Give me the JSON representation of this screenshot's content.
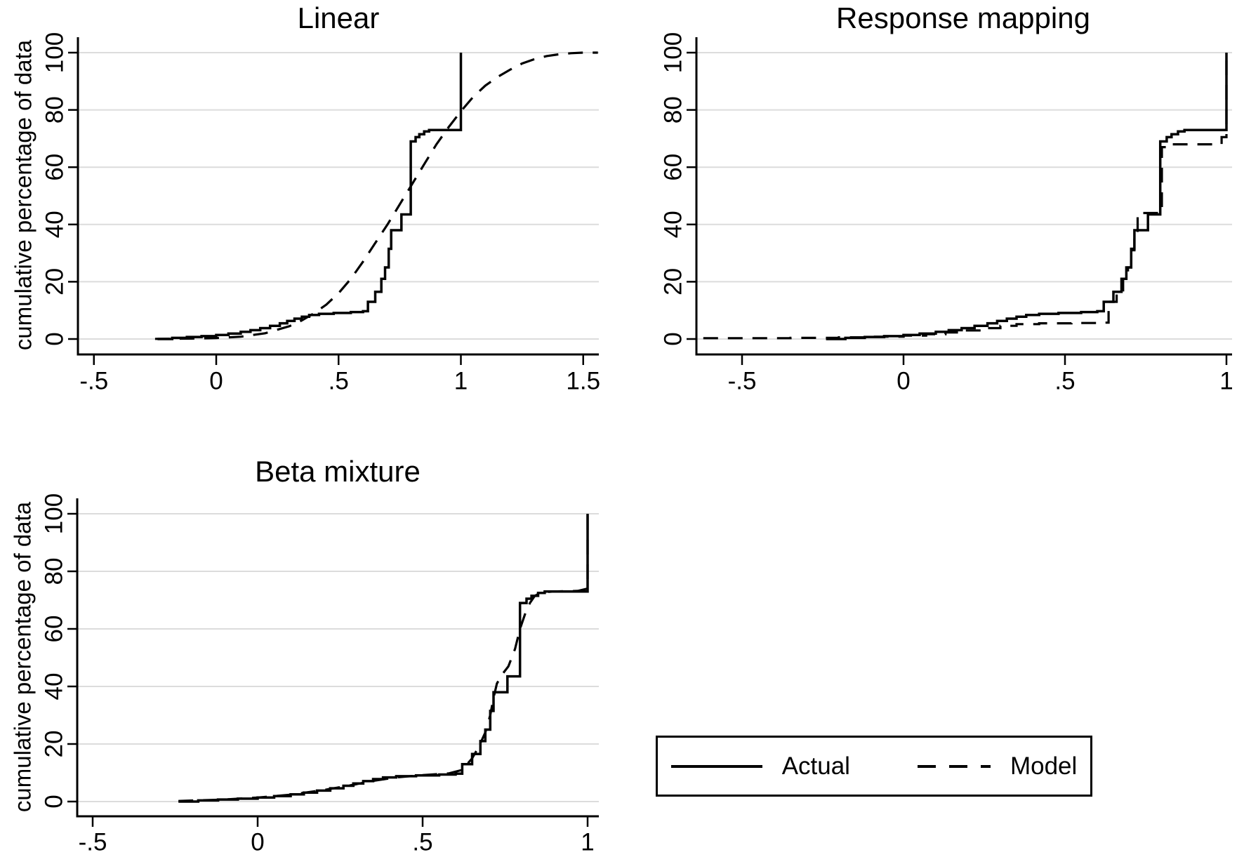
{
  "figure": {
    "background_color": "#ffffff",
    "line_color": "#000000",
    "gridline_color": "#dcdcdc",
    "shared_ylabel": "cumulative percentage of data",
    "legend": {
      "entries": [
        {
          "label": "Actual",
          "style": "solid"
        },
        {
          "label": "Model",
          "style": "dashed"
        }
      ],
      "position": "bottom-right-cell"
    }
  },
  "chart_data": [
    {
      "type": "line",
      "title": "Linear",
      "ylabel": "cumulative percentage of data",
      "xlabel": "",
      "x_range": [
        -0.565,
        1.565
      ],
      "y_range": [
        0,
        107
      ],
      "grid": "horizontal",
      "x_ticks": [
        {
          "v": -0.5,
          "label": "-.5"
        },
        {
          "v": 0,
          "label": "0"
        },
        {
          "v": 0.5,
          "label": ".5"
        },
        {
          "v": 1,
          "label": "1"
        },
        {
          "v": 1.5,
          "label": "1.5"
        }
      ],
      "y_ticks": [
        {
          "v": 0,
          "label": "0"
        },
        {
          "v": 20,
          "label": "20"
        },
        {
          "v": 40,
          "label": "40"
        },
        {
          "v": 60,
          "label": "60"
        },
        {
          "v": 80,
          "label": "80"
        },
        {
          "v": 100,
          "label": "100"
        }
      ],
      "series": [
        {
          "name": "Model",
          "style": "dashed",
          "interpolation": "linear",
          "points": [
            [
              -0.25,
              0.05
            ],
            [
              -0.1,
              0.15
            ],
            [
              0,
              0.35
            ],
            [
              0.1,
              0.8
            ],
            [
              0.2,
              2
            ],
            [
              0.3,
              4.5
            ],
            [
              0.35,
              6.5
            ],
            [
              0.4,
              9
            ],
            [
              0.45,
              12
            ],
            [
              0.5,
              16
            ],
            [
              0.55,
              21
            ],
            [
              0.6,
              27
            ],
            [
              0.65,
              33.5
            ],
            [
              0.7,
              40
            ],
            [
              0.75,
              47
            ],
            [
              0.8,
              54
            ],
            [
              0.85,
              61
            ],
            [
              0.9,
              68
            ],
            [
              0.95,
              74
            ],
            [
              1.0,
              79.5
            ],
            [
              1.05,
              84.5
            ],
            [
              1.1,
              88.5
            ],
            [
              1.15,
              91.5
            ],
            [
              1.2,
              94
            ],
            [
              1.25,
              96.2
            ],
            [
              1.3,
              97.7
            ],
            [
              1.35,
              98.8
            ],
            [
              1.4,
              99.4
            ],
            [
              1.45,
              99.8
            ],
            [
              1.5,
              100
            ],
            [
              1.56,
              100
            ]
          ]
        },
        {
          "name": "Actual",
          "style": "solid",
          "interpolation": "step",
          "points": [
            [
              -0.24,
              0
            ],
            [
              -0.18,
              0.4
            ],
            [
              -0.12,
              0.7
            ],
            [
              -0.06,
              1
            ],
            [
              0,
              1.4
            ],
            [
              0.05,
              1.9
            ],
            [
              0.1,
              2.5
            ],
            [
              0.14,
              3.1
            ],
            [
              0.18,
              3.8
            ],
            [
              0.22,
              4.6
            ],
            [
              0.26,
              5.5
            ],
            [
              0.29,
              6.3
            ],
            [
              0.32,
              7.1
            ],
            [
              0.35,
              7.8
            ],
            [
              0.38,
              8.4
            ],
            [
              0.42,
              8.8
            ],
            [
              0.48,
              9.1
            ],
            [
              0.55,
              9.4
            ],
            [
              0.6,
              9.7
            ],
            [
              0.62,
              13
            ],
            [
              0.65,
              16.5
            ],
            [
              0.675,
              21
            ],
            [
              0.69,
              25
            ],
            [
              0.705,
              31.5
            ],
            [
              0.715,
              38
            ],
            [
              0.757,
              43.5
            ],
            [
              0.795,
              69
            ],
            [
              0.815,
              70.5
            ],
            [
              0.83,
              71.5
            ],
            [
              0.85,
              72.5
            ],
            [
              0.87,
              73
            ],
            [
              1.0,
              73
            ],
            [
              1.0,
              100
            ]
          ]
        }
      ]
    },
    {
      "type": "line",
      "title": "Response mapping",
      "ylabel": "",
      "xlabel": "",
      "x_range": [
        -0.64,
        1.015
      ],
      "y_range": [
        0,
        107
      ],
      "grid": "horizontal",
      "x_ticks": [
        {
          "v": -0.5,
          "label": "-.5"
        },
        {
          "v": 0,
          "label": "0"
        },
        {
          "v": 0.5,
          "label": ".5"
        },
        {
          "v": 1,
          "label": "1"
        }
      ],
      "y_ticks": [
        {
          "v": 0,
          "label": "0"
        },
        {
          "v": 20,
          "label": "20"
        },
        {
          "v": 40,
          "label": "40"
        },
        {
          "v": 60,
          "label": "60"
        },
        {
          "v": 80,
          "label": "80"
        },
        {
          "v": 100,
          "label": "100"
        }
      ],
      "series": [
        {
          "name": "Model",
          "style": "dashed",
          "interpolation": "step",
          "points": [
            [
              -0.62,
              0.3
            ],
            [
              -0.35,
              0.4
            ],
            [
              -0.2,
              0.6
            ],
            [
              -0.1,
              0.8
            ],
            [
              0,
              1.2
            ],
            [
              0.07,
              1.7
            ],
            [
              0.13,
              2.3
            ],
            [
              0.19,
              3.0
            ],
            [
              0.25,
              3.8
            ],
            [
              0.3,
              4.6
            ],
            [
              0.35,
              5.2
            ],
            [
              0.42,
              5.5
            ],
            [
              0.52,
              5.6
            ],
            [
              0.6,
              5.7
            ],
            [
              0.635,
              13
            ],
            [
              0.66,
              17
            ],
            [
              0.68,
              21
            ],
            [
              0.695,
              25
            ],
            [
              0.705,
              31
            ],
            [
              0.715,
              36
            ],
            [
              0.725,
              44
            ],
            [
              0.79,
              44.5
            ],
            [
              0.8,
              67
            ],
            [
              0.82,
              68
            ],
            [
              0.96,
              68
            ],
            [
              0.985,
              70.5
            ],
            [
              1.0,
              71
            ],
            [
              1.0,
              100
            ]
          ]
        },
        {
          "name": "Actual",
          "style": "solid",
          "interpolation": "step",
          "points": [
            [
              -0.24,
              0
            ],
            [
              -0.18,
              0.4
            ],
            [
              -0.12,
              0.7
            ],
            [
              -0.06,
              1
            ],
            [
              0,
              1.4
            ],
            [
              0.05,
              1.9
            ],
            [
              0.1,
              2.5
            ],
            [
              0.14,
              3.1
            ],
            [
              0.18,
              3.8
            ],
            [
              0.22,
              4.6
            ],
            [
              0.26,
              5.5
            ],
            [
              0.29,
              6.3
            ],
            [
              0.32,
              7.1
            ],
            [
              0.35,
              7.8
            ],
            [
              0.38,
              8.4
            ],
            [
              0.42,
              8.8
            ],
            [
              0.48,
              9.1
            ],
            [
              0.55,
              9.4
            ],
            [
              0.6,
              9.7
            ],
            [
              0.62,
              13
            ],
            [
              0.65,
              16.5
            ],
            [
              0.675,
              21
            ],
            [
              0.69,
              25
            ],
            [
              0.705,
              31.5
            ],
            [
              0.715,
              38
            ],
            [
              0.757,
              43.5
            ],
            [
              0.795,
              69
            ],
            [
              0.815,
              70.5
            ],
            [
              0.83,
              71.5
            ],
            [
              0.85,
              72.5
            ],
            [
              0.87,
              73
            ],
            [
              1.0,
              73
            ],
            [
              1.0,
              100
            ]
          ]
        }
      ]
    },
    {
      "type": "line",
      "title": "Beta mixture",
      "ylabel": "cumulative percentage of data",
      "xlabel": "",
      "x_range": [
        -0.547,
        1.034
      ],
      "y_range": [
        0,
        107
      ],
      "grid": "horizontal",
      "x_ticks": [
        {
          "v": -0.5,
          "label": "-.5"
        },
        {
          "v": 0,
          "label": "0"
        },
        {
          "v": 0.5,
          "label": ".5"
        },
        {
          "v": 1,
          "label": "1"
        }
      ],
      "y_ticks": [
        {
          "v": 0,
          "label": "0"
        },
        {
          "v": 20,
          "label": "20"
        },
        {
          "v": 40,
          "label": "40"
        },
        {
          "v": 60,
          "label": "60"
        },
        {
          "v": 80,
          "label": "80"
        },
        {
          "v": 100,
          "label": "100"
        }
      ],
      "series": [
        {
          "name": "Model",
          "style": "dashed",
          "interpolation": "linear",
          "points": [
            [
              -0.24,
              0.2
            ],
            [
              -0.1,
              0.7
            ],
            [
              0,
              1.4
            ],
            [
              0.1,
              2.4
            ],
            [
              0.2,
              4
            ],
            [
              0.28,
              5.6
            ],
            [
              0.35,
              7.2
            ],
            [
              0.42,
              8.4
            ],
            [
              0.5,
              9.2
            ],
            [
              0.58,
              9.8
            ],
            [
              0.62,
              11
            ],
            [
              0.65,
              15
            ],
            [
              0.67,
              19
            ],
            [
              0.69,
              24
            ],
            [
              0.705,
              30
            ],
            [
              0.715,
              36
            ],
            [
              0.725,
              41
            ],
            [
              0.74,
              44
            ],
            [
              0.76,
              47
            ],
            [
              0.78,
              53
            ],
            [
              0.795,
              60
            ],
            [
              0.81,
              65
            ],
            [
              0.825,
              69
            ],
            [
              0.84,
              71.5
            ],
            [
              0.86,
              72.7
            ],
            [
              0.9,
              73
            ],
            [
              0.97,
              73.2
            ],
            [
              1.0,
              74
            ],
            [
              1.0,
              100
            ]
          ]
        },
        {
          "name": "Actual",
          "style": "solid",
          "interpolation": "step",
          "points": [
            [
              -0.24,
              0
            ],
            [
              -0.18,
              0.4
            ],
            [
              -0.12,
              0.7
            ],
            [
              -0.06,
              1
            ],
            [
              0,
              1.4
            ],
            [
              0.05,
              1.9
            ],
            [
              0.1,
              2.5
            ],
            [
              0.14,
              3.1
            ],
            [
              0.18,
              3.8
            ],
            [
              0.22,
              4.6
            ],
            [
              0.26,
              5.5
            ],
            [
              0.29,
              6.3
            ],
            [
              0.32,
              7.1
            ],
            [
              0.35,
              7.8
            ],
            [
              0.38,
              8.4
            ],
            [
              0.42,
              8.8
            ],
            [
              0.48,
              9.1
            ],
            [
              0.55,
              9.4
            ],
            [
              0.6,
              9.7
            ],
            [
              0.62,
              13
            ],
            [
              0.65,
              16.5
            ],
            [
              0.675,
              21
            ],
            [
              0.69,
              25
            ],
            [
              0.705,
              31.5
            ],
            [
              0.715,
              38
            ],
            [
              0.757,
              43.5
            ],
            [
              0.795,
              69
            ],
            [
              0.815,
              70.5
            ],
            [
              0.83,
              71.5
            ],
            [
              0.85,
              72.5
            ],
            [
              0.87,
              73
            ],
            [
              1.0,
              73
            ],
            [
              1.0,
              100
            ]
          ]
        }
      ]
    }
  ]
}
